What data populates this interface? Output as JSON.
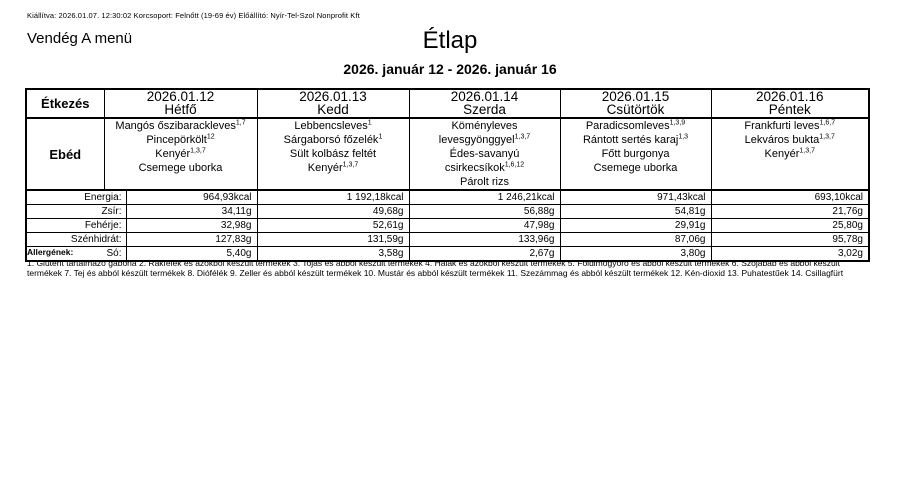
{
  "meta": {
    "issued_line": "Kiállítva: 2026.01.07. 12:30:02 Korcsoport: Felnőtt (19-69 év) Előállító: Nyír-Tel-Szol Nonprofit Kft",
    "menu_name": "Vendég A menü",
    "title": "Étlap",
    "date_range": "2026. január 12 - 2026. január 16"
  },
  "table": {
    "meal_col_header": "Étkezés",
    "meal_row_label": "Ebéd",
    "nutrition_labels": [
      "Energia:",
      "Zsír:",
      "Fehérje:",
      "Szénhidrát:",
      "Só:"
    ],
    "days": [
      {
        "date": "2026.01.12",
        "weekday": "Hétfő",
        "items": [
          {
            "name": "Mangós őszibarackleves",
            "sup": "1,7"
          },
          {
            "name": "Pincepörkölt",
            "sup": "12"
          },
          {
            "name": "Kenyér",
            "sup": "1,3,7"
          },
          {
            "name": "Csemege uborka",
            "sup": ""
          }
        ],
        "nutrition": {
          "energia": "964,93kcal",
          "zsir": "34,11g",
          "feherje": "32,98g",
          "szenhidrat": "127,83g",
          "so": "5,40g"
        }
      },
      {
        "date": "2026.01.13",
        "weekday": "Kedd",
        "items": [
          {
            "name": "Lebbencsleves",
            "sup": "1"
          },
          {
            "name": "Sárgaborsó főzelék",
            "sup": "1"
          },
          {
            "name": "Sült kolbász feltét",
            "sup": ""
          },
          {
            "name": "Kenyér",
            "sup": "1,3,7"
          }
        ],
        "nutrition": {
          "energia": "1 192,18kcal",
          "zsir": "49,68g",
          "feherje": "52,61g",
          "szenhidrat": "131,59g",
          "so": "3,58g"
        }
      },
      {
        "date": "2026.01.14",
        "weekday": "Szerda",
        "items": [
          {
            "name": "Köményleves levesgyönggyel",
            "sup": "1,3,7"
          },
          {
            "name": "Édes-savanyú csirkecsíkok",
            "sup": "1,6,12"
          },
          {
            "name": "Párolt rizs",
            "sup": ""
          }
        ],
        "nutrition": {
          "energia": "1 246,21kcal",
          "zsir": "56,88g",
          "feherje": "47,98g",
          "szenhidrat": "133,96g",
          "so": "2,67g"
        }
      },
      {
        "date": "2026.01.15",
        "weekday": "Csütörtök",
        "items": [
          {
            "name": "Paradicsomleves",
            "sup": "1,3,9"
          },
          {
            "name": "Rántott sertés karaj",
            "sup": "1,3"
          },
          {
            "name": "Főtt burgonya",
            "sup": ""
          },
          {
            "name": "Csemege uborka",
            "sup": ""
          }
        ],
        "nutrition": {
          "energia": "971,43kcal",
          "zsir": "54,81g",
          "feherje": "29,91g",
          "szenhidrat": "87,06g",
          "so": "3,80g"
        }
      },
      {
        "date": "2026.01.16",
        "weekday": "Péntek",
        "items": [
          {
            "name": "Frankfurti leves",
            "sup": "1,6,7"
          },
          {
            "name": "Lekváros bukta",
            "sup": "1,3,7"
          },
          {
            "name": "Kenyér",
            "sup": "1,3,7"
          }
        ],
        "nutrition": {
          "energia": "693,10kcal",
          "zsir": "21,76g",
          "feherje": "25,80g",
          "szenhidrat": "95,78g",
          "so": "3,02g"
        }
      }
    ]
  },
  "allergens": {
    "heading": "Allergének:",
    "text": "1. Glutént tartalmazó gabona 2. Rákfélék és azokból készült termékek 3. Tojás és abból készült termékek 4. Halak és azokból készült termékek 5. Földimogyoró és abból készült termékek 6. Szójabab és abból készült termékek 7. Tej és abból készült termékek 8. Diófélék 9. Zeller és abból készült termékek 10. Mustár és abból készült termékek 11. Szezámmag és abból készült termékek 12. Kén-dioxid 13. Puhatestűek 14. Csillagfürt"
  }
}
